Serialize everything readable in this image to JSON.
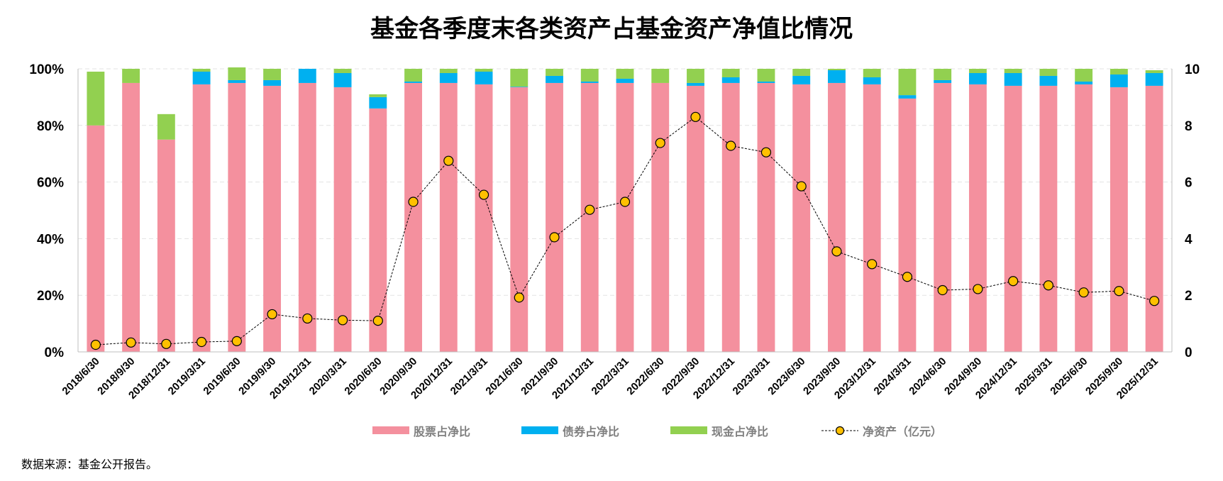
{
  "chart_data": {
    "type": "bar",
    "stacked": true,
    "title": "基金各季度末各类资产占基金资产净值比情况",
    "categories": [
      "2018/6/30",
      "2018/9/30",
      "2018/12/31",
      "2019/3/31",
      "2019/6/30",
      "2019/9/30",
      "2019/12/31",
      "2020/3/31",
      "2020/6/30",
      "2020/9/30",
      "2020/12/31",
      "2021/3/31",
      "2021/6/30",
      "2021/9/30",
      "2021/12/31",
      "2022/3/31",
      "2022/6/30",
      "2022/9/30",
      "2022/12/31",
      "2023/3/31",
      "2023/6/30",
      "2023/9/30",
      "2023/12/31",
      "2024/3/31",
      "2024/6/30",
      "2024/9/30",
      "2024/12/31",
      "2025/3/31",
      "2025/6/30",
      "2025/9/30",
      "2025/12/31"
    ],
    "y_left": {
      "range": [
        0,
        100
      ],
      "ticks": [
        "0%",
        "20%",
        "40%",
        "60%",
        "80%",
        "100%"
      ],
      "unit": "%"
    },
    "y_right": {
      "range": [
        0,
        10
      ],
      "ticks": [
        "0",
        "2",
        "4",
        "6",
        "8",
        "10"
      ]
    },
    "grid": "horizontal-dashed",
    "legend_position": "bottom",
    "series": [
      {
        "name": "股票占净比",
        "kind": "bar",
        "axis": "left",
        "color": "#F4909E",
        "values": [
          80,
          95,
          75,
          94.5,
          95,
          94,
          95,
          93.5,
          86,
          95,
          95,
          94.5,
          93.5,
          95,
          95,
          95,
          95,
          94,
          95,
          95,
          94.5,
          95,
          94.5,
          89.5,
          95,
          94.5,
          94,
          94,
          94.5,
          93.5,
          94
        ]
      },
      {
        "name": "债券占净比",
        "kind": "bar",
        "axis": "left",
        "color": "#00B0F0",
        "values": [
          0,
          0,
          0,
          4.5,
          1,
          2,
          5,
          5,
          4,
          0.5,
          3.5,
          4.5,
          0.2,
          2.5,
          0.5,
          1.5,
          0,
          1,
          2,
          0.5,
          3,
          4.5,
          2.5,
          1.2,
          1,
          4,
          4.5,
          3.5,
          1,
          4.5,
          4.5
        ]
      },
      {
        "name": "现金占净比",
        "kind": "bar",
        "axis": "left",
        "color": "#92D050",
        "values": [
          19,
          5,
          9,
          1,
          4.5,
          4,
          0,
          1.5,
          1,
          4.5,
          1.5,
          1,
          6.3,
          2.5,
          4.5,
          3.5,
          5,
          5,
          3,
          4.5,
          2.5,
          0.5,
          3,
          9.3,
          4,
          1.5,
          1.5,
          2.5,
          4.5,
          2,
          1
        ]
      },
      {
        "name": "净资产（亿元）",
        "kind": "line",
        "axis": "right",
        "color": "#000000",
        "marker_fill": "#FFC000",
        "values": [
          0.25,
          0.33,
          0.28,
          0.35,
          0.38,
          1.33,
          1.18,
          1.12,
          1.1,
          5.3,
          6.75,
          5.55,
          1.92,
          4.05,
          5.02,
          5.3,
          7.38,
          8.3,
          7.28,
          7.05,
          5.85,
          3.55,
          3.1,
          2.65,
          2.18,
          2.22,
          2.5,
          2.35,
          2.1,
          2.15,
          1.8
        ]
      }
    ]
  },
  "footer": {
    "source": "数据来源：基金公开报告。"
  }
}
